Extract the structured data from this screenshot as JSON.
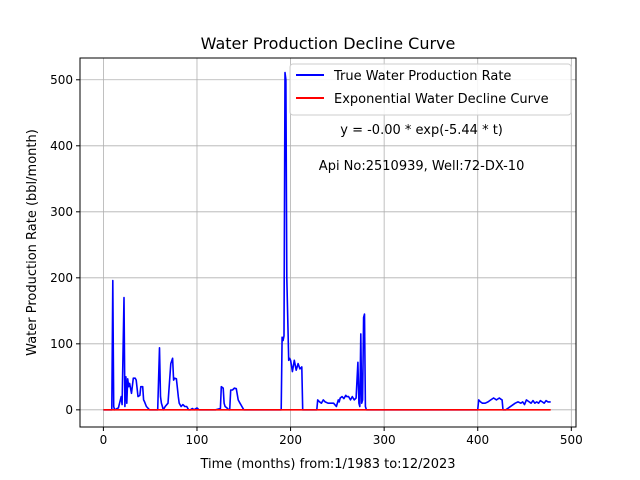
{
  "chart_data": {
    "type": "line",
    "title": "Water Production Decline Curve",
    "xlabel": "Time (months) from:1/1983 to:12/2023",
    "ylabel": "Water Production Rate (bbl/month)",
    "xlim": [
      -25,
      505
    ],
    "ylim": [
      -26,
      533
    ],
    "xticks": [
      0,
      100,
      200,
      300,
      400,
      500
    ],
    "yticks": [
      0,
      100,
      200,
      300,
      400,
      500
    ],
    "grid": true,
    "legend_position": "top-right",
    "annotations": [
      {
        "text": "y = -0.00 * exp(-5.44 * t)",
        "x": 340,
        "y": 418
      },
      {
        "text": "Api No:2510939, Well:72-DX-10",
        "x": 340,
        "y": 363
      }
    ],
    "series": [
      {
        "name": "True Water Production Rate",
        "color": "#0000ff",
        "x": [
          0,
          9,
          10,
          11,
          12,
          16,
          19,
          20,
          22,
          23,
          24,
          25,
          26,
          27,
          28,
          30,
          32,
          34,
          35,
          37,
          39,
          40,
          42,
          43,
          44,
          46,
          48,
          49,
          51,
          53,
          55,
          58,
          60,
          61,
          62,
          63,
          64,
          66,
          69,
          72,
          74,
          75,
          76,
          78,
          80,
          81,
          83,
          85,
          87,
          89,
          91,
          93,
          95,
          97,
          100,
          102,
          104,
          110,
          120,
          125,
          126,
          128,
          129,
          130,
          132,
          134,
          135,
          136,
          138,
          140,
          142,
          144,
          146,
          148,
          150,
          155,
          170,
          190,
          191,
          192,
          193,
          194,
          195,
          196,
          197,
          198,
          199,
          200,
          202,
          204,
          206,
          208,
          210,
          212,
          213,
          215,
          220,
          222,
          224,
          226,
          228,
          229,
          231,
          233,
          235,
          237,
          240,
          243,
          246,
          249,
          251,
          252,
          253,
          255,
          257,
          259,
          260,
          262,
          264,
          266,
          268,
          270,
          272,
          273,
          274,
          275,
          276,
          277,
          278,
          279,
          280,
          281,
          282,
          283,
          284,
          285,
          287,
          289,
          300,
          350,
          400,
          401,
          403,
          405,
          408,
          411,
          414,
          417,
          420,
          423,
          425,
          426,
          427,
          428,
          430,
          440,
          443,
          446,
          448,
          450,
          452,
          455,
          457,
          459,
          461,
          463,
          465,
          467,
          469,
          471,
          473,
          475,
          478
        ],
        "y": [
          0,
          0,
          196,
          5,
          0,
          3,
          20,
          8,
          170,
          5,
          50,
          10,
          47,
          35,
          40,
          25,
          48,
          48,
          45,
          20,
          22,
          35,
          35,
          15,
          12,
          5,
          2,
          0,
          0,
          0,
          0,
          0,
          94,
          20,
          10,
          5,
          0,
          5,
          10,
          70,
          78,
          45,
          48,
          47,
          20,
          10,
          5,
          8,
          5,
          5,
          0,
          0,
          2,
          0,
          3,
          0,
          0,
          0,
          0,
          2,
          35,
          33,
          10,
          5,
          3,
          0,
          0,
          30,
          30,
          33,
          32,
          15,
          10,
          5,
          0,
          0,
          0,
          0,
          110,
          105,
          112,
          511,
          500,
          200,
          135,
          75,
          78,
          75,
          58,
          75,
          60,
          70,
          62,
          65,
          0,
          0,
          0,
          0,
          0,
          0,
          0,
          15,
          12,
          10,
          15,
          12,
          10,
          10,
          10,
          5,
          15,
          12,
          18,
          20,
          17,
          22,
          20,
          20,
          15,
          20,
          15,
          18,
          72,
          10,
          5,
          115,
          10,
          15,
          140,
          145,
          5,
          0,
          0,
          0,
          0,
          0,
          0,
          0,
          0,
          0,
          0,
          15,
          12,
          10,
          10,
          12,
          15,
          18,
          15,
          18,
          16,
          15,
          0,
          0,
          0,
          10,
          12,
          10,
          12,
          8,
          15,
          12,
          10,
          14,
          10,
          12,
          10,
          14,
          12,
          10,
          14,
          12,
          12
        ]
      },
      {
        "name": "Exponential Water Decline Curve",
        "color": "#ff0000",
        "x": [
          0,
          478
        ],
        "y": [
          0,
          0
        ]
      }
    ]
  }
}
